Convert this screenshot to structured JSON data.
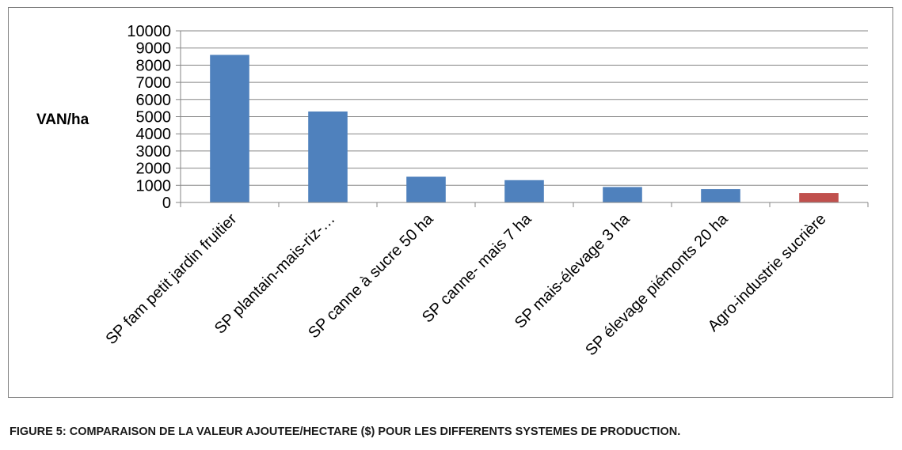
{
  "chart_data": {
    "type": "bar",
    "ylabel": "VAN/ha",
    "ylim": [
      0,
      10000
    ],
    "yticks": [
      0,
      1000,
      2000,
      3000,
      4000,
      5000,
      6000,
      7000,
      8000,
      9000,
      10000
    ],
    "grid": true,
    "legend": "none",
    "categories": [
      "SP fam petit jardin fruitier",
      "SP plantain-mais-riz-…",
      "SP canne à sucre 50 ha",
      "SP  canne- mais 7 ha",
      "SP mais-élevage 3 ha",
      "SP élevage piémonts 20 ha",
      "Agro-industrie sucrière"
    ],
    "values": [
      8600,
      5300,
      1500,
      1300,
      900,
      780,
      550
    ],
    "colors": [
      "#4f81bd",
      "#4f81bd",
      "#4f81bd",
      "#4f81bd",
      "#4f81bd",
      "#4f81bd",
      "#c0504d"
    ]
  },
  "caption": "FIGURE 5: COMPARAISON DE LA VALEUR AJOUTEE/HECTARE ($) POUR LES DIFFERENTS SYSTEMES DE PRODUCTION."
}
